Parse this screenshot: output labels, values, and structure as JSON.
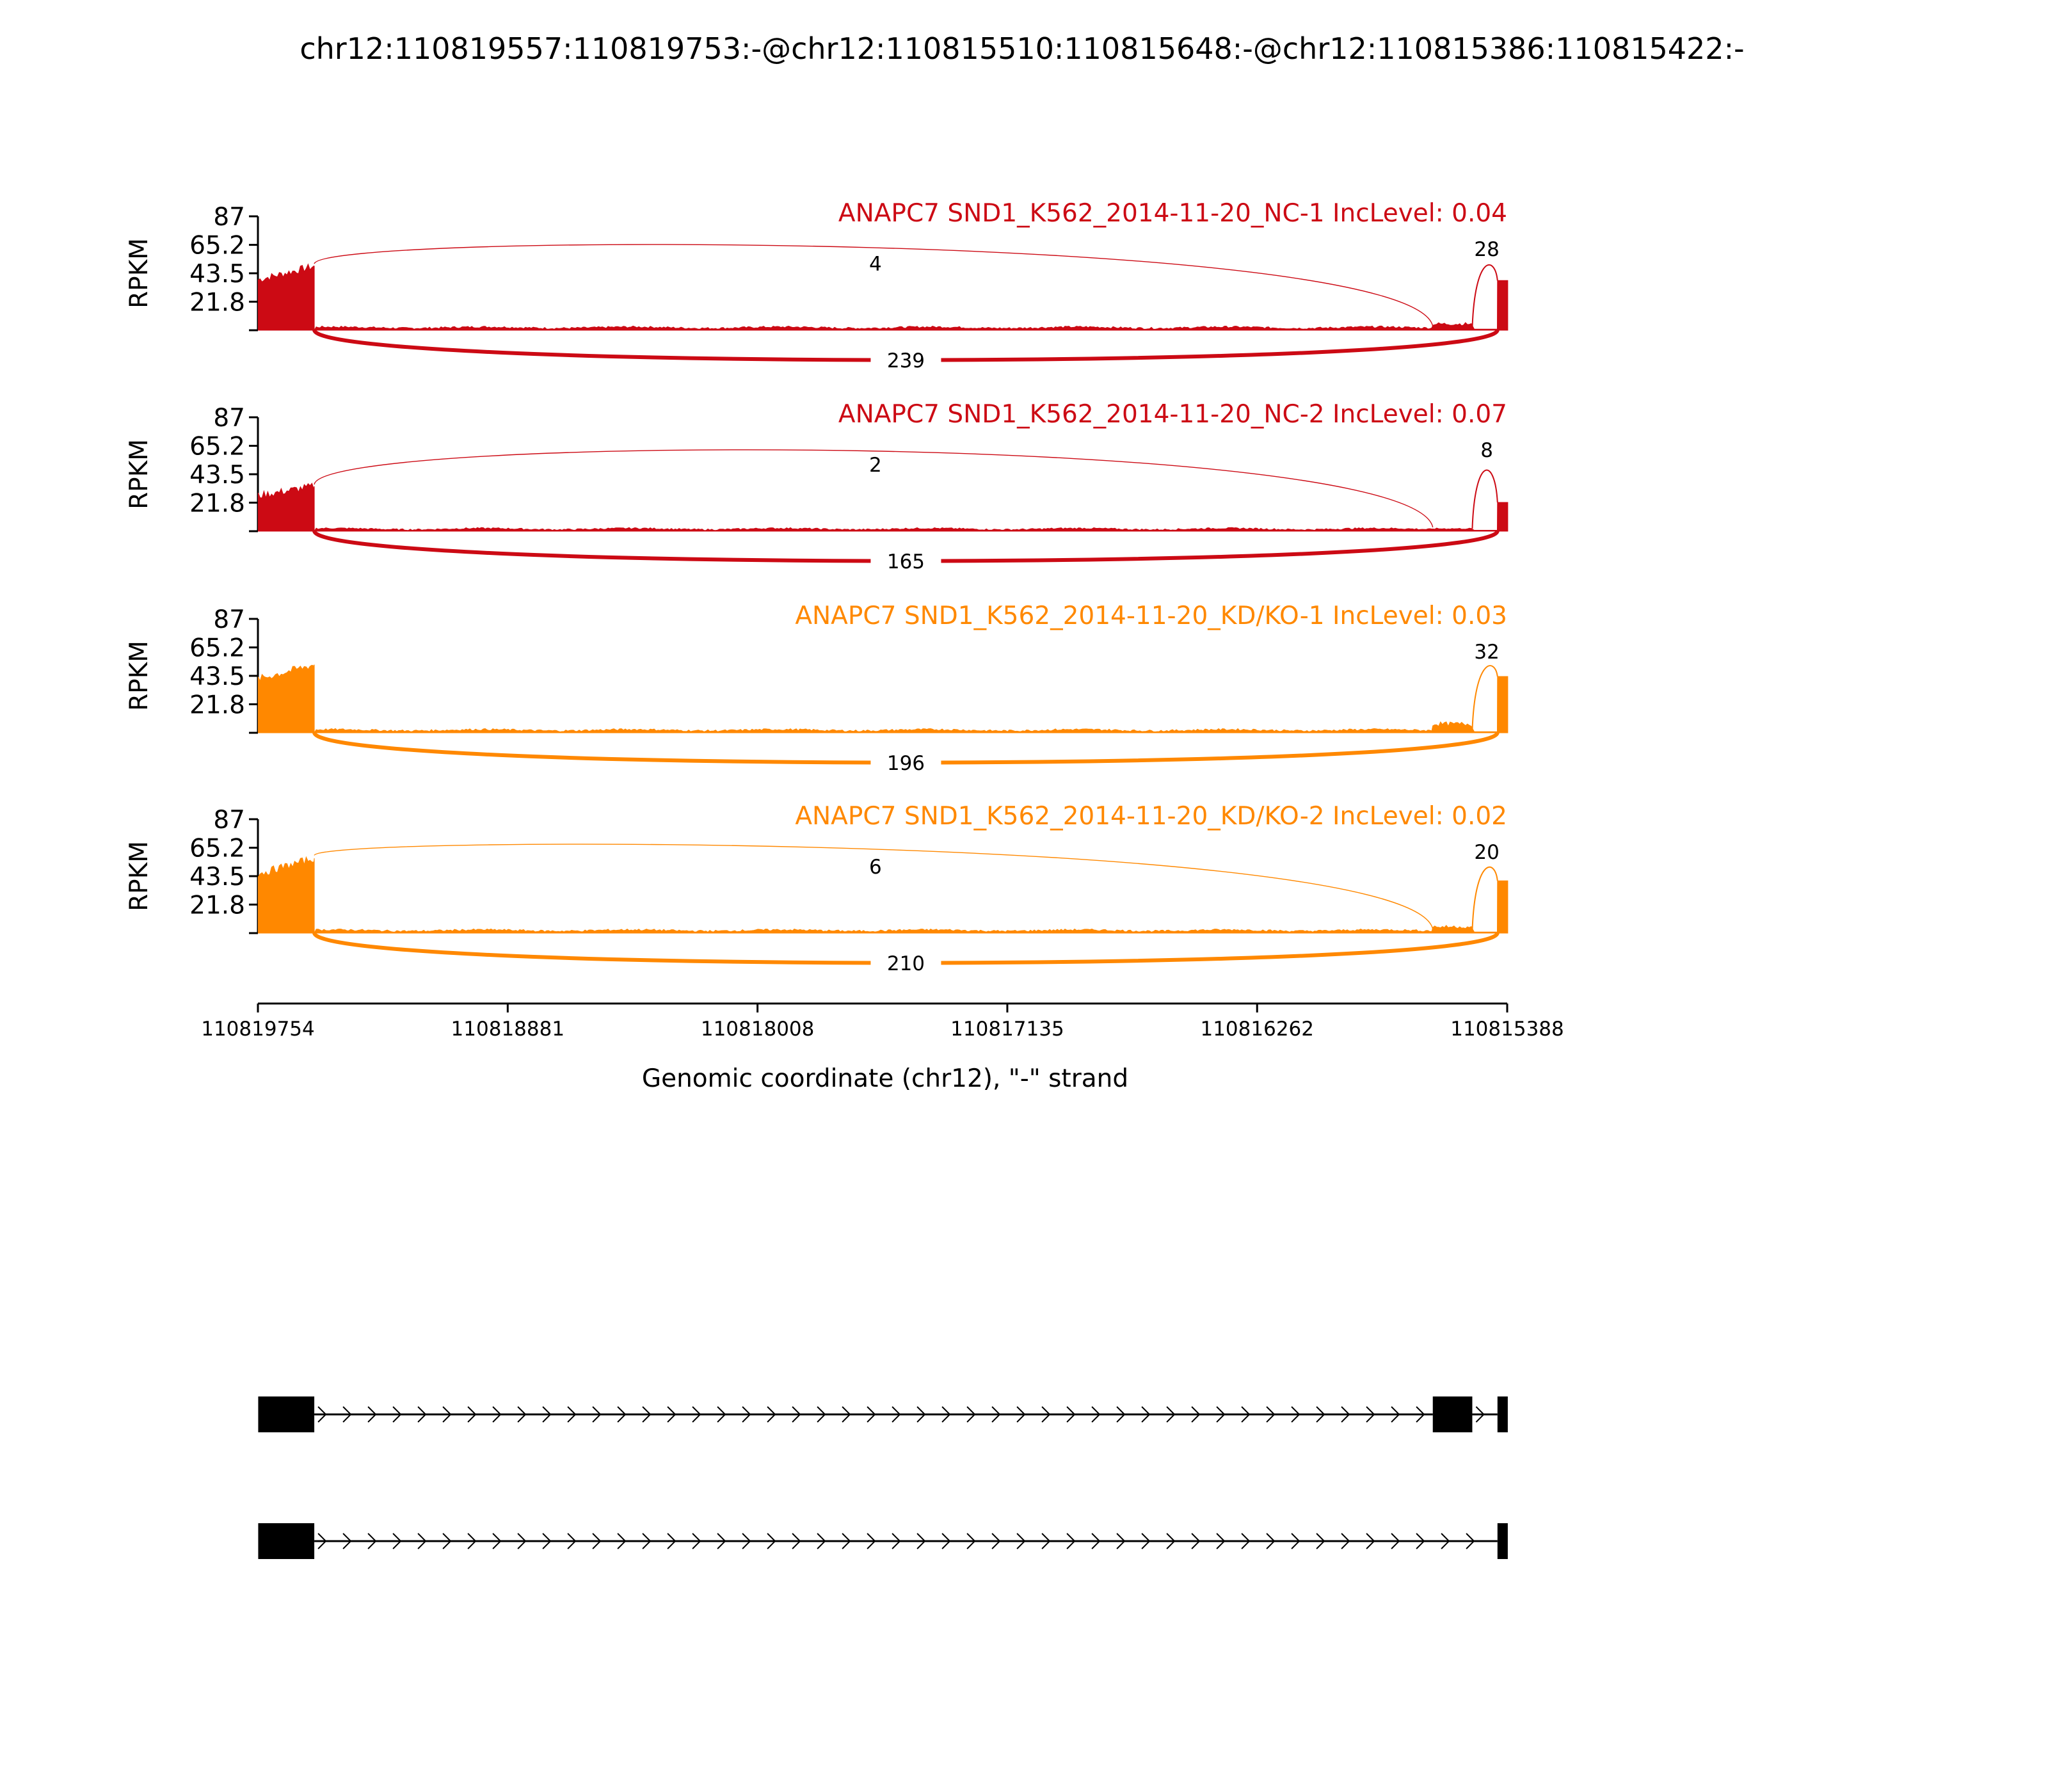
{
  "title": "chr12:110819557:110819753:-@chr12:110815510:110815648:-@chr12:110815386:110815422:-",
  "chart_data": {
    "type": "area",
    "xlabel": "Genomic coordinate (chr12), \"-\" strand",
    "xticks": [
      "110819754",
      "110818881",
      "110818008",
      "110817135",
      "110816262",
      "110815388"
    ],
    "x_range": [
      110819754,
      110815388
    ],
    "ylabel": "RPKM",
    "yticks": [
      "87",
      "65.2",
      "43.5",
      "21.8"
    ],
    "ylim": [
      0,
      87
    ],
    "colors": {
      "NC": "#cc0a14",
      "KD": "#ff8800"
    },
    "tracks": [
      {
        "label": "ANAPC7 SND1_K562_2014-11-20_NC-1 IncLevel: 0.04",
        "group": "NC",
        "exon1_level": 47,
        "exon2_level": 5,
        "exon3_level": 38,
        "intron_level": 1.5,
        "junctions": {
          "upstream_inclusion": "4",
          "downstream_inclusion": "28",
          "skipping": "239"
        }
      },
      {
        "label": "ANAPC7 SND1_K562_2014-11-20_NC-2 IncLevel: 0.07",
        "group": "NC",
        "exon1_level": 33,
        "exon2_level": 2,
        "exon3_level": 22,
        "intron_level": 1.2,
        "junctions": {
          "upstream_inclusion": "2",
          "downstream_inclusion": "8",
          "skipping": "165"
        }
      },
      {
        "label": "ANAPC7 SND1_K562_2014-11-20_KD/KO-1 IncLevel: 0.03",
        "group": "KD",
        "exon1_level": 50,
        "exon2_level": 7,
        "exon3_level": 43,
        "intron_level": 1.5,
        "junctions": {
          "upstream_inclusion": "",
          "downstream_inclusion": "32",
          "skipping": "196"
        }
      },
      {
        "label": "ANAPC7 SND1_K562_2014-11-20_KD/KO-2 IncLevel: 0.02",
        "group": "KD",
        "exon1_level": 55,
        "exon2_level": 5,
        "exon3_level": 40,
        "intron_level": 1.5,
        "junctions": {
          "upstream_inclusion": "6",
          "downstream_inclusion": "20",
          "skipping": "210"
        }
      }
    ],
    "exons": [
      {
        "start": 110819753,
        "end": 110819557
      },
      {
        "start": 110815648,
        "end": 110815510
      },
      {
        "start": 110815422,
        "end": 110815386
      }
    ],
    "isoforms": [
      {
        "name": "inclusion",
        "exons": [
          0,
          1,
          2
        ]
      },
      {
        "name": "skipping",
        "exons": [
          0,
          2
        ]
      }
    ]
  }
}
